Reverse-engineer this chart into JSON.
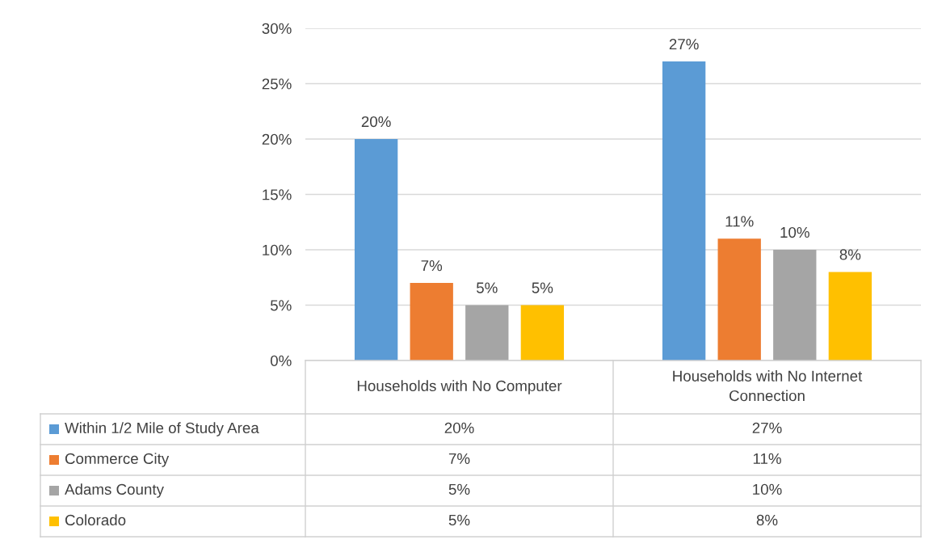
{
  "chart_data": {
    "type": "bar",
    "categories": [
      "Households with No Computer",
      "Households with No Internet Connection"
    ],
    "series": [
      {
        "name": "Within 1/2 Mile of Study Area",
        "color": "#5b9bd5",
        "values": [
          20,
          27
        ],
        "value_labels": [
          "20%",
          "27%"
        ]
      },
      {
        "name": "Commerce City",
        "color": "#ed7d31",
        "values": [
          7,
          11
        ],
        "value_labels": [
          "7%",
          "11%"
        ]
      },
      {
        "name": "Adams County",
        "color": "#a5a5a5",
        "values": [
          5,
          10
        ],
        "value_labels": [
          "5%",
          "10%"
        ]
      },
      {
        "name": "Colorado",
        "color": "#ffc000",
        "values": [
          5,
          8
        ],
        "value_labels": [
          "5%",
          "8%"
        ]
      }
    ],
    "ylim": [
      0,
      30
    ],
    "yticks": [
      {
        "value": 0,
        "label": "0%"
      },
      {
        "value": 5,
        "label": "5%"
      },
      {
        "value": 10,
        "label": "10%"
      },
      {
        "value": 15,
        "label": "15%"
      },
      {
        "value": 20,
        "label": "20%"
      },
      {
        "value": 25,
        "label": "25%"
      },
      {
        "value": 30,
        "label": "30%"
      }
    ],
    "grid": "y",
    "legend": "bottom"
  }
}
